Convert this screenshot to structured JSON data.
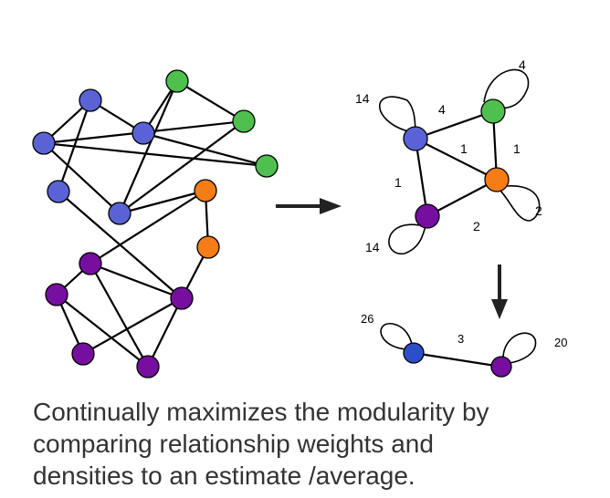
{
  "colors": {
    "blue": "#5a63d6",
    "dark_blue": "#2c4fc9",
    "green": "#4fc04f",
    "orange": "#f57c16",
    "purple": "#760e9f"
  },
  "pass2": {
    "weights": {
      "blue_loop": "14",
      "blue_green": "4",
      "green_loop": "4",
      "blue_orange": "1",
      "green_orange": "1",
      "blue_purple": "1",
      "orange_purple": "2",
      "orange_loop": "2",
      "purple_loop": "14"
    }
  },
  "pass3": {
    "weights": {
      "blue_loop": "26",
      "blue_purple": "3",
      "purple_loop": "20"
    }
  },
  "caption": {
    "line1": "Continually maximizes the modularity by",
    "line2": "comparing relationship weights and",
    "line3": "densities to an estimate /average."
  }
}
